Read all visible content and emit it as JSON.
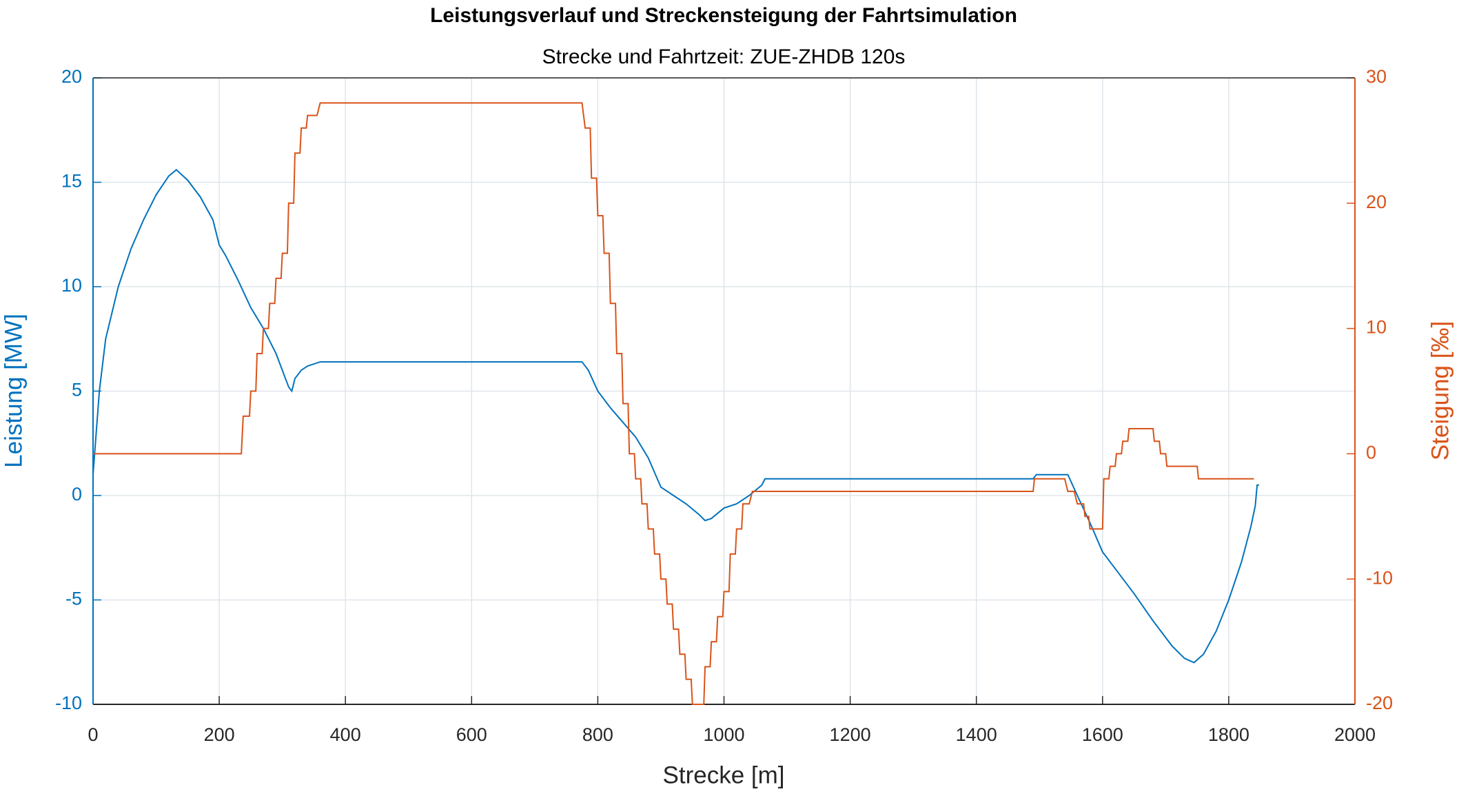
{
  "chart_data": {
    "type": "line",
    "title": "Leistungsverlauf und Streckensteigung der Fahrtsimulation",
    "subtitle": "Strecke und Fahrtzeit: ZUE-ZHDB 120s",
    "xlabel": "Strecke [m]",
    "ylabel": "Leistung [MW]",
    "y2label": "Steigung [‰]",
    "xlim": [
      0,
      2000
    ],
    "xticks": [
      0,
      200,
      400,
      600,
      800,
      1000,
      1200,
      1400,
      1600,
      1800,
      2000
    ],
    "ylim": [
      -10,
      20
    ],
    "yticks": [
      -10,
      -5,
      0,
      5,
      10,
      15,
      20
    ],
    "y2lim": [
      -20,
      30
    ],
    "y2ticks": [
      -20,
      -10,
      0,
      10,
      20,
      30
    ],
    "grid": true,
    "series": [
      {
        "color": "#0072BD",
        "axis": "y",
        "x": [
          0,
          10,
          20,
          40,
          60,
          80,
          100,
          120,
          132,
          150,
          170,
          190,
          200,
          210,
          230,
          250,
          270,
          290,
          310,
          315,
          320,
          330,
          340,
          360,
          400,
          600,
          775,
          785,
          800,
          820,
          840,
          860,
          880,
          900,
          920,
          940,
          960,
          970,
          980,
          1000,
          1020,
          1040,
          1060,
          1065,
          1200,
          1490,
          1495,
          1545,
          1560,
          1580,
          1600,
          1620,
          1650,
          1680,
          1710,
          1730,
          1745,
          1760,
          1780,
          1800,
          1820,
          1835,
          1842,
          1845,
          1848
        ],
        "values": [
          1,
          5,
          7.5,
          10,
          11.8,
          13.2,
          14.4,
          15.3,
          15.6,
          15.1,
          14.3,
          13.2,
          12,
          11.5,
          10.3,
          9,
          8,
          6.8,
          5.2,
          5,
          5.6,
          6,
          6.2,
          6.4,
          6.4,
          6.4,
          6.4,
          6,
          5,
          4.2,
          3.5,
          2.8,
          1.8,
          0.4,
          0,
          -0.4,
          -0.9,
          -1.2,
          -1.1,
          -0.6,
          -0.4,
          0,
          0.5,
          0.8,
          0.8,
          0.8,
          1,
          1,
          0,
          -1.3,
          -2.7,
          -3.5,
          -4.7,
          -6,
          -7.2,
          -7.8,
          -8,
          -7.6,
          -6.5,
          -5,
          -3.2,
          -1.5,
          -0.5,
          0.5,
          0.5
        ]
      },
      {
        "color": "#D95319",
        "axis": "y2",
        "x": [
          0,
          235,
          238,
          248,
          250,
          258,
          260,
          268,
          270,
          278,
          280,
          288,
          290,
          298,
          300,
          308,
          310,
          318,
          320,
          328,
          330,
          338,
          340,
          355,
          360,
          775,
          780,
          788,
          790,
          798,
          800,
          808,
          810,
          818,
          820,
          828,
          830,
          838,
          840,
          848,
          850,
          858,
          860,
          868,
          870,
          878,
          880,
          888,
          890,
          898,
          900,
          908,
          910,
          918,
          920,
          928,
          930,
          938,
          940,
          948,
          950,
          968,
          970,
          978,
          980,
          988,
          990,
          998,
          1000,
          1008,
          1010,
          1018,
          1020,
          1028,
          1030,
          1040,
          1045,
          1490,
          1492,
          1540,
          1545,
          1555,
          1560,
          1570,
          1572,
          1578,
          1580,
          1600,
          1602,
          1610,
          1612,
          1620,
          1622,
          1630,
          1632,
          1640,
          1642,
          1680,
          1682,
          1690,
          1692,
          1700,
          1702,
          1750,
          1752,
          1840
        ],
        "values": [
          0,
          0,
          3,
          3,
          5,
          5,
          8,
          8,
          10,
          10,
          12,
          12,
          14,
          14,
          16,
          16,
          20,
          20,
          24,
          24,
          26,
          26,
          27,
          27,
          28,
          28,
          26,
          26,
          22,
          22,
          19,
          19,
          16,
          16,
          12,
          12,
          8,
          8,
          4,
          4,
          0,
          0,
          -2,
          -2,
          -4,
          -4,
          -6,
          -6,
          -8,
          -8,
          -10,
          -10,
          -12,
          -12,
          -14,
          -14,
          -16,
          -16,
          -18,
          -18,
          -20,
          -20,
          -17,
          -17,
          -15,
          -15,
          -13,
          -13,
          -11,
          -11,
          -8,
          -8,
          -6,
          -6,
          -4,
          -4,
          -3,
          -3,
          -2,
          -2,
          -3,
          -3,
          -4,
          -4,
          -5,
          -5,
          -6,
          -6,
          -2,
          -2,
          -1,
          -1,
          0,
          0,
          1,
          1,
          2,
          2,
          1,
          1,
          0,
          0,
          -1,
          -1,
          -2,
          -2
        ]
      }
    ]
  }
}
